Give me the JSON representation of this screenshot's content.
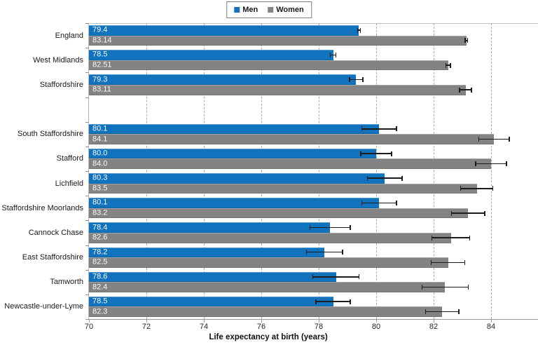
{
  "chart_data": {
    "type": "bar",
    "orientation": "horizontal",
    "title": "",
    "xlabel": "Life expectancy at birth (years)",
    "xlim": [
      70,
      85.6
    ],
    "xticks": [
      70,
      72,
      74,
      76,
      78,
      80,
      82,
      84
    ],
    "grid": "vertical dashed gridlines at each x tick",
    "legend_position": "top-center",
    "categories": [
      "England",
      "West Midlands",
      "Staffordshire",
      "South Staffordshire",
      "Stafford",
      "Lichfield",
      "Staffordshire Moorlands",
      "Cannock Chase",
      "East Staffordshire",
      "Tamworth",
      "Newcastle-under-Lyme"
    ],
    "group_gap_after": "Staffordshire",
    "series": [
      {
        "name": "Men",
        "color": "#1173BE",
        "values": [
          79.4,
          78.5,
          79.3,
          80.1,
          80.0,
          80.3,
          80.1,
          78.4,
          78.2,
          78.6,
          78.5
        ],
        "value_labels": [
          "79.4",
          "78.5",
          "79.3",
          "80.1",
          "80.0",
          "80.3",
          "80.1",
          "78.4",
          "78.2",
          "78.6",
          "78.5"
        ],
        "error_bars": [
          0.07,
          0.12,
          0.25,
          0.62,
          0.55,
          0.62,
          0.62,
          0.72,
          0.65,
          0.82,
          0.62
        ]
      },
      {
        "name": "Women",
        "color": "#838383",
        "values": [
          83.14,
          82.51,
          83.11,
          84.1,
          84.0,
          83.5,
          83.2,
          82.6,
          82.5,
          82.4,
          82.3
        ],
        "value_labels": [
          "83.14",
          "82.51",
          "83.11",
          "84.1",
          "84.0",
          "83.5",
          "83.2",
          "82.6",
          "82.5",
          "82.4",
          "82.3"
        ],
        "error_bars": [
          0.06,
          0.1,
          0.22,
          0.55,
          0.55,
          0.58,
          0.6,
          0.68,
          0.6,
          0.82,
          0.6
        ]
      }
    ]
  },
  "colors": {
    "men_bar": "#1173BE",
    "women_bar": "#838383",
    "value_label_text": "#fafafa",
    "gridline": "#ababab",
    "axis_line": "#9a9a9a",
    "label_text": "#1a1a1a"
  }
}
